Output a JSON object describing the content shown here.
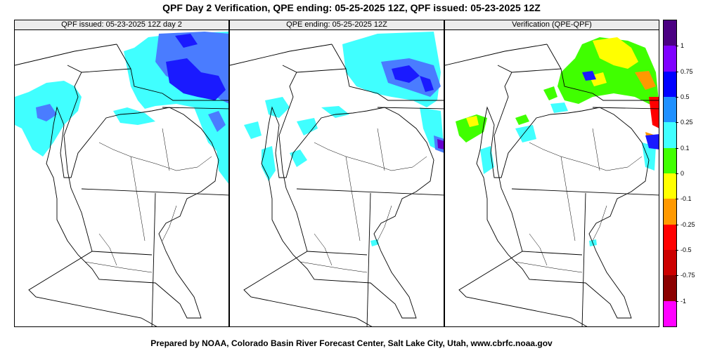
{
  "title": "QPF Day 2 Verification, QPE ending: 05-25-2025 12Z, QPF issued: 05-23-2025 12Z",
  "footer": "Prepared by NOAA, Colorado Basin River Forecast Center, Salt Lake City, Utah, www.cbrfc.noaa.gov",
  "panels": [
    {
      "title": "QPF issued: 05-23-2025 12Z day 2"
    },
    {
      "title": "QPE ending: 05-25-2025 12Z"
    },
    {
      "title": "Verification (QPE-QPF)"
    }
  ],
  "legend": {
    "labels": [
      "1",
      "0.75",
      "0.5",
      "0.25",
      "0.1",
      "0",
      "-0.1",
      "-0.25",
      "-0.5",
      "-0.75",
      "-1"
    ],
    "colors": [
      "#4b0082",
      "#7f00ff",
      "#0000ff",
      "#1e90ff",
      "#40ffff",
      "#40ff00",
      "#ffff00",
      "#ff9900",
      "#ff0000",
      "#cc0000",
      "#8b0000",
      "#ff00ff"
    ]
  },
  "colors": {
    "light_cyan": "#40ffff",
    "medium_blue": "#4a7cff",
    "dark_blue": "#1a1aff",
    "purple": "#6600cc",
    "green": "#40ff00",
    "yellow": "#ffff00",
    "orange": "#ff9900",
    "red": "#ff0000"
  }
}
